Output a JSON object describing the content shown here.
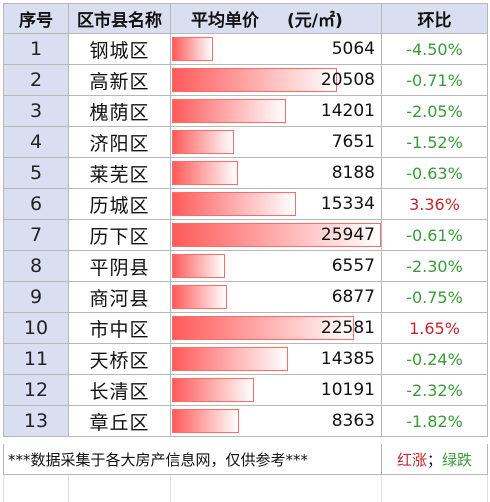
{
  "headers": {
    "index": "序号",
    "district": "区市县名称",
    "price": "平均单价",
    "unit": "(元/㎡)",
    "change": "环比"
  },
  "colors": {
    "up": "#c0282d",
    "down": "#3a9a3a",
    "header_bg": "#d9dff0",
    "bar": "#ff5a5a"
  },
  "rows": [
    {
      "index": "1",
      "name": "钢城区",
      "price": "5064",
      "change": "-4.50%",
      "dir": "down"
    },
    {
      "index": "2",
      "name": "高新区",
      "price": "20508",
      "change": "-0.71%",
      "dir": "down"
    },
    {
      "index": "3",
      "name": "槐荫区",
      "price": "14201",
      "change": "-2.05%",
      "dir": "down"
    },
    {
      "index": "4",
      "name": "济阳区",
      "price": "7651",
      "change": "-1.52%",
      "dir": "down"
    },
    {
      "index": "5",
      "name": "莱芜区",
      "price": "8188",
      "change": "-0.63%",
      "dir": "down"
    },
    {
      "index": "6",
      "name": "历城区",
      "price": "15334",
      "change": "3.36%",
      "dir": "up"
    },
    {
      "index": "7",
      "name": "历下区",
      "price": "25947",
      "change": "-0.61%",
      "dir": "down"
    },
    {
      "index": "8",
      "name": "平阴县",
      "price": "6557",
      "change": "-2.30%",
      "dir": "down"
    },
    {
      "index": "9",
      "name": "商河县",
      "price": "6877",
      "change": "-0.75%",
      "dir": "down"
    },
    {
      "index": "10",
      "name": "市中区",
      "price": "22581",
      "change": "1.65%",
      "dir": "up"
    },
    {
      "index": "11",
      "name": "天桥区",
      "price": "14385",
      "change": "-0.24%",
      "dir": "down"
    },
    {
      "index": "12",
      "name": "长清区",
      "price": "10191",
      "change": "-2.32%",
      "dir": "down"
    },
    {
      "index": "13",
      "name": "章丘区",
      "price": "8363",
      "change": "-1.82%",
      "dir": "down"
    }
  ],
  "footer": {
    "note": "***数据采集于各大房产信息网，仅供参考***",
    "legend_up": "红涨",
    "legend_sep": "；",
    "legend_down": "绿跌"
  }
}
